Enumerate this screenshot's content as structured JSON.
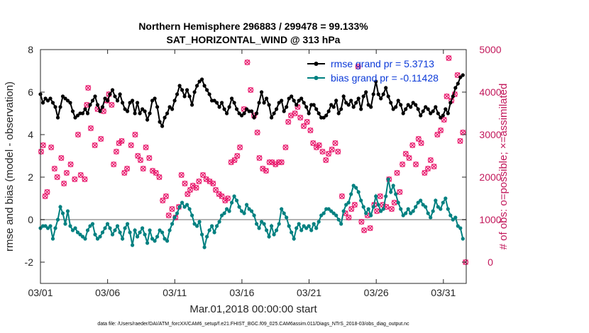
{
  "chart_data": {
    "type": "line",
    "title": "Northern Hemisphere 296883 / 299478 = 99.133%",
    "subtitle": "SAT_HORIZONTAL_WIND @ 313 hPa",
    "xlabel": "Mar.01,2018 00:00:00 start",
    "ylabel": "rmse and bias (model - observation)",
    "y2label": "# of obs: o=possible; ×=assimilated",
    "xlim": [
      0,
      31.7
    ],
    "ylim": [
      -3,
      8
    ],
    "y2lim": [
      -500,
      5000
    ],
    "xticks": [
      {
        "x": 0,
        "label": "03/01"
      },
      {
        "x": 5,
        "label": "03/06"
      },
      {
        "x": 10,
        "label": "03/11"
      },
      {
        "x": 15,
        "label": "03/16"
      },
      {
        "x": 20,
        "label": "03/21"
      },
      {
        "x": 25,
        "label": "03/26"
      },
      {
        "x": 30,
        "label": "03/31"
      }
    ],
    "yticks": [
      -2,
      0,
      2,
      4,
      6,
      8
    ],
    "y2ticks": [
      0,
      1000,
      2000,
      3000,
      4000,
      5000
    ],
    "legend_position": "top-right",
    "zero_line": 0,
    "series": [
      {
        "name": "rmse grand pr = 5.3713",
        "color": "#000000",
        "marker": "filled-circle",
        "values": [
          5.9,
          5.5,
          5.7,
          5.6,
          5.7,
          5.5,
          5.3,
          4.8,
          5.3,
          5.8,
          5.7,
          5.6,
          5.5,
          5.1,
          4.8,
          4.9,
          5.0,
          5.0,
          5.2,
          5.0,
          5.4,
          5.6,
          5.8,
          5.4,
          5.1,
          5.3,
          5.7,
          5.6,
          5.9,
          6.1,
          5.8,
          5.6,
          5.9,
          5.5,
          5.2,
          5.1,
          5.5,
          5.6,
          5.0,
          5.5,
          5.0,
          5.2,
          5.1,
          4.7,
          5.0,
          5.6,
          5.7,
          5.3,
          4.6,
          4.4,
          4.8,
          5.0,
          5.3,
          5.2,
          5.6,
          5.9,
          6.3,
          6.1,
          5.8,
          6.1,
          5.8,
          5.4,
          6.0,
          6.3,
          6.5,
          6.6,
          6.3,
          6.1,
          5.9,
          5.6,
          5.6,
          5.5,
          5.3,
          5.5,
          5.2,
          5.0,
          5.3,
          5.7,
          5.5,
          5.2,
          5.0,
          4.9,
          5.0,
          5.2,
          5.1,
          5.1,
          4.8,
          5.0,
          5.5,
          6.0,
          5.5,
          5.7,
          5.4,
          4.8,
          5.0,
          5.2,
          5.5,
          5.6,
          5.1,
          5.3,
          5.7,
          5.8,
          5.6,
          5.4,
          5.6,
          5.7,
          5.5,
          5.3,
          5.0,
          5.4,
          5.4,
          5.2,
          5.0,
          4.8,
          4.8,
          4.9,
          5.1,
          5.4,
          5.3,
          5.6,
          5.0,
          5.2,
          5.8,
          5.5,
          5.4,
          5.6,
          5.3,
          5.5,
          5.7,
          5.2,
          5.8,
          6.0,
          5.4,
          5.3,
          5.9,
          6.5,
          5.9,
          5.7,
          5.9,
          6.2,
          5.8,
          5.5,
          5.2,
          5.3,
          5.6,
          5.4,
          5.0,
          5.2,
          5.4,
          5.3,
          5.5,
          5.4,
          5.2,
          4.9,
          5.1,
          5.3,
          5.2,
          5.0,
          5.1,
          5.3,
          5.0,
          4.8,
          4.9,
          5.2,
          5.0,
          5.5,
          5.8,
          6.2,
          6.4,
          6.7,
          6.8
        ]
      },
      {
        "name": "bias grand pr = -0.11428",
        "color": "#008080",
        "marker": "filled-circle",
        "values": [
          -0.4,
          -0.3,
          -0.3,
          -0.4,
          -0.3,
          -0.9,
          -0.4,
          0.0,
          0.6,
          0.3,
          -0.2,
          0.4,
          -0.3,
          -0.5,
          -0.4,
          -0.6,
          -0.7,
          -0.8,
          -0.9,
          -0.5,
          -0.3,
          -0.2,
          -0.7,
          -0.9,
          -0.8,
          -0.6,
          -0.4,
          -0.2,
          -0.4,
          -0.7,
          -0.5,
          -0.3,
          -0.6,
          -0.9,
          -0.4,
          -0.2,
          -0.6,
          -1.2,
          -0.5,
          -0.8,
          -0.6,
          -0.4,
          -0.7,
          -1.1,
          -0.5,
          -0.9,
          -1.0,
          -0.8,
          -0.5,
          -0.6,
          -0.9,
          -1.0,
          -0.5,
          -0.2,
          0.1,
          0.3,
          0.6,
          0.8,
          0.6,
          0.7,
          0.5,
          0.2,
          -0.2,
          -0.3,
          -0.1,
          -0.7,
          -1.3,
          -0.8,
          -0.5,
          -0.3,
          -0.6,
          -0.3,
          -0.1,
          0.2,
          0.3,
          0.5,
          0.4,
          0.8,
          1.1,
          0.9,
          0.6,
          0.4,
          0.3,
          0.7,
          0.5,
          0.4,
          0.2,
          -0.2,
          -0.4,
          -0.1,
          -0.2,
          -0.5,
          -0.8,
          -0.3,
          -0.7,
          -0.5,
          -0.2,
          0.5,
          0.3,
          0.1,
          -0.3,
          -0.6,
          -0.9,
          -0.4,
          -0.2,
          -0.5,
          -0.3,
          -0.4,
          -0.3,
          -0.5,
          -0.2,
          -0.4,
          -0.1,
          0.2,
          0.3,
          0.5,
          0.5,
          0.4,
          0.3,
          0.2,
          0.0,
          -0.2,
          0.4,
          0.7,
          0.8,
          1.2,
          1.6,
          1.5,
          1.3,
          0.9,
          0.6,
          0.3,
          0.5,
          0.2,
          0.6,
          1.1,
          0.7,
          0.4,
          0.5,
          1.1,
          1.9,
          1.3,
          1.6,
          1.2,
          0.8,
          0.5,
          0.2,
          0.3,
          0.5,
          0.3,
          0.4,
          0.6,
          0.8,
          0.9,
          0.7,
          0.6,
          0.3,
          0.1,
          0.4,
          0.9,
          0.6,
          0.5,
          0.8,
          1.0,
          0.5,
          0.2,
          0.0,
          0.1,
          -0.3,
          -0.4,
          -0.9
        ]
      }
    ],
    "obs_series": {
      "name": "# of obs (possible / assimilated)",
      "color": "#e8176b",
      "axis": "right",
      "points": [
        [
          0.05,
          2600
        ],
        [
          0.2,
          2750
        ],
        [
          0.35,
          1550
        ],
        [
          0.5,
          1650
        ],
        [
          0.8,
          2700
        ],
        [
          1.05,
          2200
        ],
        [
          1.25,
          2000
        ],
        [
          1.55,
          2450
        ],
        [
          1.75,
          1850
        ],
        [
          1.95,
          2100
        ],
        [
          2.25,
          2300
        ],
        [
          2.55,
          1950
        ],
        [
          2.8,
          3000
        ],
        [
          3.0,
          2050
        ],
        [
          3.3,
          1950
        ],
        [
          3.45,
          3700
        ],
        [
          3.55,
          4100
        ],
        [
          3.75,
          3150
        ],
        [
          4.05,
          2750
        ],
        [
          4.25,
          3600
        ],
        [
          4.5,
          2900
        ],
        [
          4.7,
          3550
        ],
        [
          4.95,
          3800
        ],
        [
          5.1,
          3950
        ],
        [
          5.3,
          3700
        ],
        [
          5.45,
          2300
        ],
        [
          5.65,
          2600
        ],
        [
          5.85,
          2800
        ],
        [
          6.05,
          2850
        ],
        [
          6.25,
          2100
        ],
        [
          6.45,
          2200
        ],
        [
          6.75,
          2750
        ],
        [
          7.05,
          3000
        ],
        [
          7.25,
          2500
        ],
        [
          7.45,
          2400
        ],
        [
          7.65,
          2200
        ],
        [
          7.85,
          2700
        ],
        [
          8.1,
          2450
        ],
        [
          8.35,
          2150
        ],
        [
          8.6,
          2100
        ],
        [
          8.85,
          2000
        ],
        [
          9.1,
          1450
        ],
        [
          9.35,
          1550
        ],
        [
          9.55,
          1100
        ],
        [
          9.8,
          1250
        ],
        [
          10.05,
          1050
        ],
        [
          10.3,
          1300
        ],
        [
          10.5,
          2050
        ],
        [
          10.75,
          1850
        ],
        [
          10.95,
          1600
        ],
        [
          11.15,
          1700
        ],
        [
          11.35,
          1800
        ],
        [
          11.6,
          1750
        ],
        [
          11.8,
          1900
        ],
        [
          12.1,
          2050
        ],
        [
          12.35,
          1950
        ],
        [
          12.6,
          1900
        ],
        [
          12.85,
          1850
        ],
        [
          13.05,
          1700
        ],
        [
          13.3,
          1600
        ],
        [
          13.5,
          1550
        ],
        [
          13.75,
          1450
        ],
        [
          13.95,
          1500
        ],
        [
          14.2,
          2350
        ],
        [
          14.45,
          2400
        ],
        [
          14.65,
          2500
        ],
        [
          14.85,
          2700
        ],
        [
          15.15,
          3600
        ],
        [
          15.4,
          4700
        ],
        [
          15.65,
          4050
        ],
        [
          15.9,
          3450
        ],
        [
          16.15,
          3050
        ],
        [
          16.3,
          2450
        ],
        [
          16.55,
          2200
        ],
        [
          16.8,
          2150
        ],
        [
          17.05,
          2350
        ],
        [
          17.25,
          2350
        ],
        [
          17.5,
          2300
        ],
        [
          17.75,
          2350
        ],
        [
          17.95,
          2350
        ],
        [
          18.25,
          2700
        ],
        [
          18.45,
          3300
        ],
        [
          18.65,
          3450
        ],
        [
          18.95,
          3500
        ],
        [
          19.15,
          3650
        ],
        [
          19.35,
          3400
        ],
        [
          19.6,
          3200
        ],
        [
          19.85,
          3300
        ],
        [
          20.1,
          3100
        ],
        [
          20.3,
          2800
        ],
        [
          20.55,
          2700
        ],
        [
          20.75,
          2750
        ],
        [
          21.0,
          2600
        ],
        [
          21.25,
          2400
        ],
        [
          21.45,
          2550
        ],
        [
          21.7,
          2650
        ],
        [
          21.95,
          2800
        ],
        [
          22.15,
          2600
        ],
        [
          22.45,
          1550
        ],
        [
          22.7,
          1150
        ],
        [
          22.95,
          1050
        ],
        [
          23.15,
          1250
        ],
        [
          23.4,
          1350
        ],
        [
          23.65,
          4600
        ],
        [
          23.9,
          950
        ],
        [
          24.1,
          750
        ],
        [
          24.35,
          1100
        ],
        [
          24.55,
          800
        ],
        [
          24.85,
          1350
        ],
        [
          25.05,
          1200
        ],
        [
          25.3,
          1550
        ],
        [
          25.5,
          1350
        ],
        [
          25.75,
          1300
        ],
        [
          25.95,
          1950
        ],
        [
          26.15,
          1250
        ],
        [
          26.35,
          1400
        ],
        [
          26.55,
          2100
        ],
        [
          26.75,
          1650
        ],
        [
          26.95,
          2300
        ],
        [
          27.2,
          2550
        ],
        [
          27.45,
          2450
        ],
        [
          27.7,
          2750
        ],
        [
          27.95,
          2300
        ],
        [
          28.15,
          2900
        ],
        [
          28.35,
          2800
        ],
        [
          28.6,
          2100
        ],
        [
          28.85,
          2200
        ],
        [
          29.05,
          2400
        ],
        [
          29.3,
          2250
        ],
        [
          29.55,
          3000
        ],
        [
          29.8,
          3100
        ],
        [
          30.05,
          3350
        ],
        [
          30.25,
          3900
        ],
        [
          30.4,
          4800
        ],
        [
          30.6,
          3800
        ],
        [
          30.85,
          3950
        ],
        [
          31.05,
          4400
        ],
        [
          31.25,
          2850
        ],
        [
          31.45,
          3050
        ],
        [
          31.65,
          0
        ]
      ]
    }
  },
  "footnote": "data file: /Users/raeder/DAI/ATM_forcXX/CAM6_setup/f.e21.FHIST_BGC.f09_025.CAM6assim.011/Diags_NTrS_2018-03/obs_diag_output.nc"
}
